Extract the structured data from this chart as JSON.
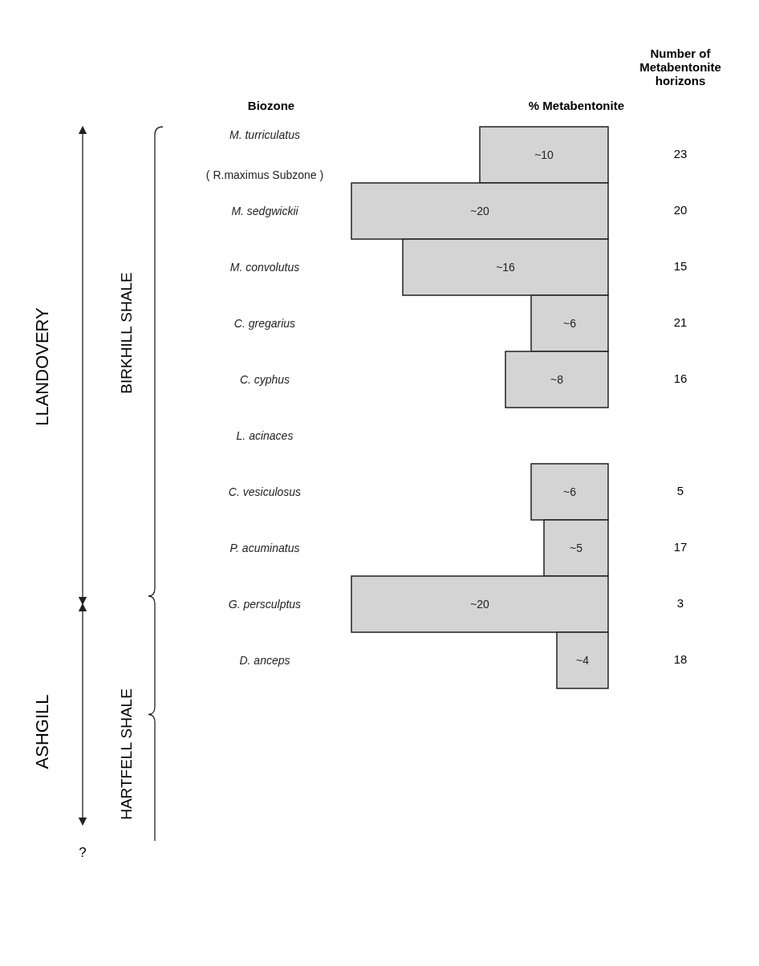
{
  "chart_data": {
    "type": "bar",
    "orientation": "horizontal",
    "xlabel": "% Metabentonite",
    "ylabel": "Biozone",
    "categories": [
      "M. turriculatus\n( R.maximus Subzone )",
      "M. sedgwickii",
      "M. convolutus",
      "C. gregarius",
      "C. cyphus",
      "L. acinaces",
      "C. vesiculosus",
      "P. acuminatus",
      "G. persculptus",
      "D. anceps"
    ],
    "values": [
      10,
      20,
      16,
      6,
      8,
      null,
      6,
      5,
      20,
      4
    ],
    "value_labels": [
      "~10",
      "~20",
      "~16",
      "~6",
      "~8",
      null,
      "~6",
      "~5",
      "~20",
      "~4"
    ],
    "color": "#d4d4d4",
    "tick_labels": "y",
    "annotations": [
      "Number of Metabentonite horizons",
      "23",
      "20",
      "15",
      "21",
      "16",
      "5",
      "17",
      "3",
      "18",
      "LLANDOVERY",
      "ASHGILL",
      "BIRKHILL SHALE",
      "HARTFELL SHALE",
      "?"
    ]
  }
}
